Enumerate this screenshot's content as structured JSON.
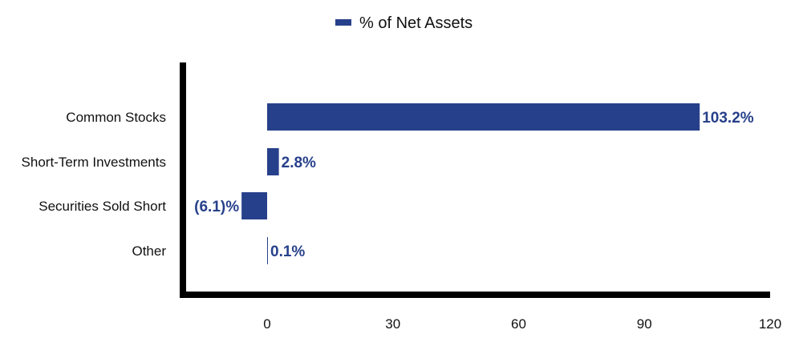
{
  "chart_data": {
    "type": "bar",
    "orientation": "horizontal",
    "categories": [
      "Common Stocks",
      "Short-Term Investments",
      "Securities Sold Short",
      "Other"
    ],
    "series": [
      {
        "name": "% of Net Assets",
        "values": [
          103.2,
          2.8,
          -6.1,
          0.1
        ],
        "labels": [
          "103.2%",
          "2.8%",
          "(6.1)%",
          "0.1%"
        ]
      }
    ],
    "xticks": [
      0,
      30,
      60,
      90,
      120
    ],
    "xtick_labels": [
      "0",
      "30",
      "60",
      "90",
      "120"
    ],
    "xlim": [
      -20,
      120
    ],
    "legend_position": "top-center",
    "grid": false,
    "bar_color": "#27408b"
  }
}
